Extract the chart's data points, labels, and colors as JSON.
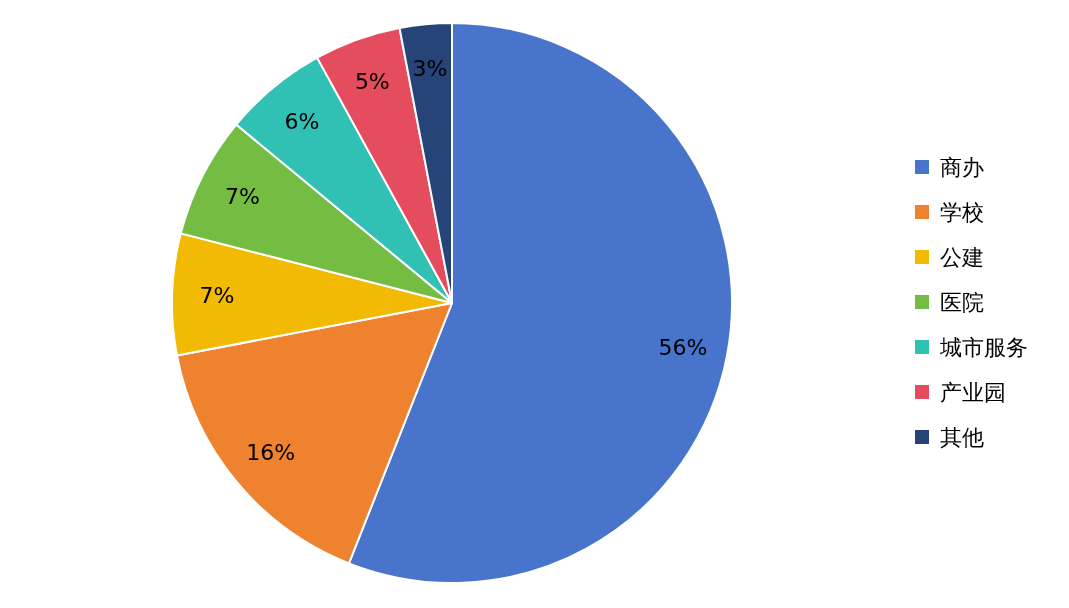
{
  "chart_data": {
    "type": "pie",
    "categories": [
      "商办",
      "学校",
      "公建",
      "医院",
      "城市服务",
      "产业园",
      "其他"
    ],
    "values": [
      56,
      16,
      7,
      7,
      6,
      5,
      3
    ],
    "colors": [
      "#4874cb",
      "#ee822f",
      "#f2ba02",
      "#75bd42",
      "#30c0b4",
      "#e54c5e",
      "#264478"
    ],
    "value_labels": [
      "56%",
      "16%",
      "7%",
      "7%",
      "6%",
      "5%",
      "3%"
    ],
    "legend": "right"
  }
}
